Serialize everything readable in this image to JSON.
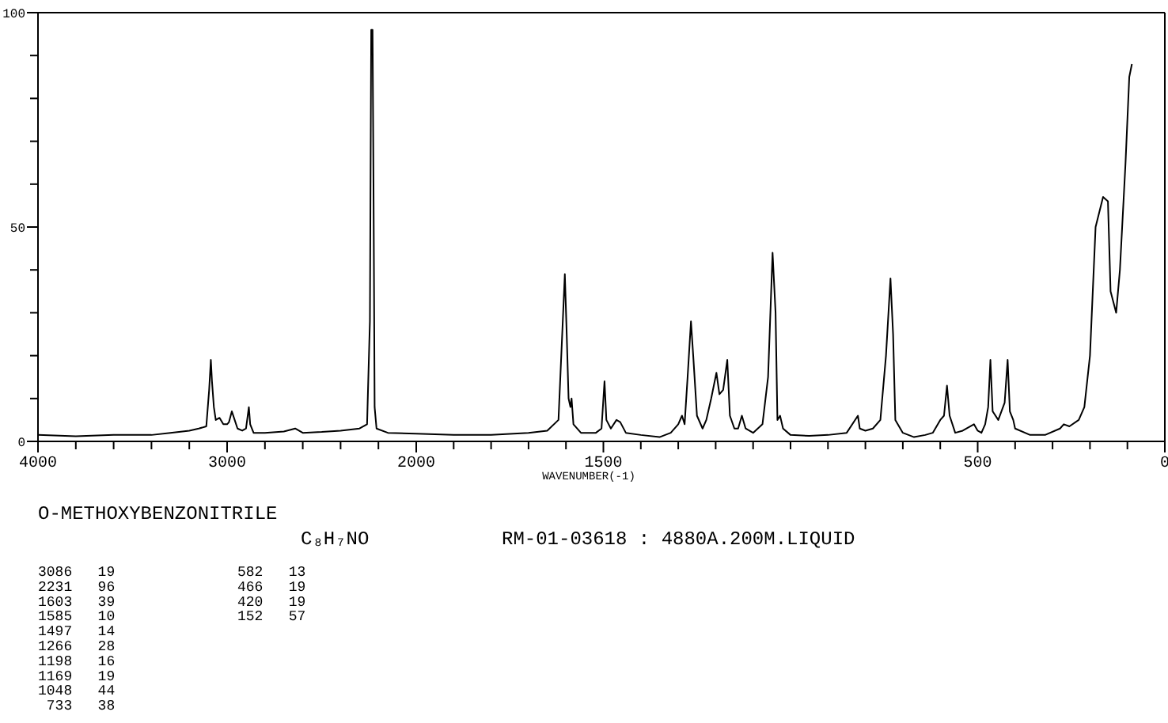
{
  "chart_data": [
    {
      "type": "line",
      "title": "O-METHOXYBENZONITRILE",
      "subtitle": "C₈H₇NO",
      "xlim": [
        4000,
        2000
      ],
      "ylim": [
        0,
        100
      ],
      "xticks": [
        4000,
        {
          "value": 3800,
          "label": null
        },
        {
          "value": 3600,
          "label": null
        },
        {
          "value": 3400,
          "label": null
        },
        {
          "value": 3200,
          "label": null
        },
        3000,
        {
          "value": 2800,
          "label": null
        },
        {
          "value": 2600,
          "label": null
        },
        {
          "value": 2400,
          "label": null
        },
        {
          "value": 2200,
          "label": null
        },
        2000
      ],
      "yticks": [
        0,
        {
          "value": 10,
          "label": null
        },
        {
          "value": 20,
          "label": null
        },
        {
          "value": 30,
          "label": null
        },
        {
          "value": 40,
          "label": null
        },
        50,
        {
          "value": 60,
          "label": null
        },
        {
          "value": 70,
          "label": null
        },
        {
          "value": 80,
          "label": null
        },
        {
          "value": 90,
          "label": null
        },
        100
      ],
      "marker": "none",
      "line_style": "solid",
      "series": [
        {
          "color": "#000000",
          "x": [
            4000,
            3800,
            3600,
            3400,
            3300,
            3200,
            3150,
            3110,
            3095,
            3086,
            3080,
            3070,
            3060,
            3040,
            3020,
            3000,
            2990,
            2975,
            2960,
            2945,
            2920,
            2900,
            2885,
            2878,
            2860,
            2800,
            2700,
            2640,
            2600,
            2500,
            2400,
            2300,
            2260,
            2245,
            2238,
            2231,
            2226,
            2220,
            2210,
            2150,
            2000
          ],
          "values": [
            1.5,
            1.2,
            1.5,
            1.5,
            2,
            2.5,
            3,
            3.5,
            12,
            19,
            14,
            8,
            5,
            5.5,
            4,
            4,
            4.5,
            7,
            5,
            3,
            2.5,
            3,
            8,
            4,
            2,
            2,
            2.3,
            3,
            2,
            2.2,
            2.5,
            3,
            4,
            28,
            96,
            96,
            60,
            8,
            3,
            2,
            1.8
          ]
        }
      ],
      "annotations": [
        "RM-01-03618 : 4880A.200M.LIQUID",
        "3086   19",
        "2231   96",
        "1603   39",
        "1585   10",
        "1497   14",
        "1266   28",
        "1198   16",
        "1169   19",
        "1048   44",
        " 733   38",
        "582   13",
        "466   19",
        "420   19",
        "152   57"
      ]
    },
    {
      "type": "line",
      "xlabel": "WAVENUMBER(-1)",
      "tick_labels": "x",
      "xlim": [
        2000,
        0
      ],
      "ylim": [
        0,
        100
      ],
      "xticks": [
        {
          "value": 1900,
          "label": null
        },
        {
          "value": 1800,
          "label": null
        },
        {
          "value": 1700,
          "label": null
        },
        {
          "value": 1600,
          "label": null
        },
        1500,
        {
          "value": 1400,
          "label": null
        },
        {
          "value": 1300,
          "label": null
        },
        {
          "value": 1200,
          "label": null
        },
        {
          "value": 1100,
          "label": null
        },
        {
          "value": 1000,
          "label": null
        },
        {
          "value": 900,
          "label": null
        },
        {
          "value": 800,
          "label": null
        },
        {
          "value": 700,
          "label": null
        },
        {
          "value": 600,
          "label": null
        },
        500,
        {
          "value": 400,
          "label": null
        },
        {
          "value": 300,
          "label": null
        },
        {
          "value": 200,
          "label": null
        },
        {
          "value": 100,
          "label": null
        },
        0
      ],
      "marker": "none",
      "line_style": "solid",
      "series": [
        {
          "color": "#000000",
          "x": [
            2000,
            1900,
            1800,
            1700,
            1650,
            1620,
            1610,
            1603,
            1598,
            1593,
            1588,
            1585,
            1580,
            1560,
            1520,
            1505,
            1497,
            1492,
            1480,
            1465,
            1455,
            1440,
            1400,
            1350,
            1320,
            1300,
            1290,
            1283,
            1275,
            1266,
            1260,
            1250,
            1235,
            1225,
            1212,
            1198,
            1190,
            1180,
            1169,
            1162,
            1150,
            1140,
            1130,
            1120,
            1100,
            1075,
            1060,
            1048,
            1040,
            1035,
            1028,
            1020,
            1000,
            950,
            900,
            850,
            820,
            815,
            800,
            780,
            760,
            745,
            733,
            726,
            720,
            700,
            670,
            640,
            620,
            600,
            590,
            582,
            575,
            560,
            540,
            510,
            500,
            490,
            480,
            472,
            466,
            460,
            445,
            428,
            420,
            414,
            405,
            400,
            360,
            320,
            280,
            270,
            255,
            230,
            215,
            200,
            185,
            165,
            152,
            145,
            130,
            120,
            105,
            95,
            88
          ],
          "values": [
            1.8,
            1.5,
            1.5,
            2,
            2.5,
            5,
            25,
            39,
            25,
            10,
            8,
            10,
            4,
            2,
            2,
            3,
            14,
            5,
            3,
            5,
            4.5,
            2,
            1.5,
            1,
            2,
            4,
            6,
            4,
            15,
            28,
            20,
            6,
            3,
            5,
            10,
            16,
            11,
            12,
            19,
            6,
            3,
            3,
            6,
            3,
            2,
            4,
            15,
            44,
            30,
            5,
            6,
            3,
            1.5,
            1.3,
            1.5,
            2,
            6,
            3,
            2.5,
            3,
            5,
            20,
            38,
            25,
            5,
            2,
            1,
            1.5,
            2,
            5,
            6,
            13,
            6,
            2,
            2.5,
            4,
            2.5,
            2,
            4,
            8,
            19,
            7,
            5,
            9,
            19,
            7,
            5,
            3,
            1.5,
            1.5,
            3,
            4,
            3.5,
            5,
            8,
            20,
            50,
            57,
            56,
            35,
            30,
            40,
            65,
            85,
            88
          ]
        }
      ]
    }
  ]
}
